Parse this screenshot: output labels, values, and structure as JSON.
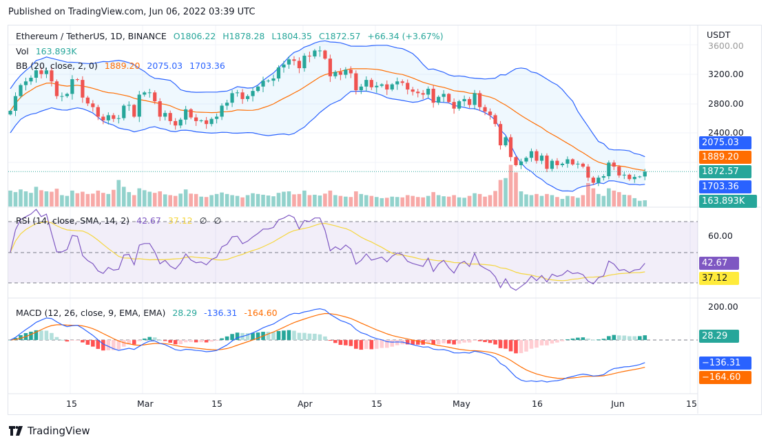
{
  "header": "Published on TradingView.com, Jun 06, 2022 03:39 UTC",
  "legend": {
    "symbol": "Ethereum / TetherUS, 1D, BINANCE",
    "o": "O1806.22",
    "h": "H1878.28",
    "l": "L1804.35",
    "c": "C1872.57",
    "chg": "+66.34 (+3.67%)",
    "vol_label": "Vol",
    "vol": "163.893K",
    "bb_label": "BB (20, close, 2, 0)",
    "bb_basis": "1889.20",
    "bb_upper": "2075.03",
    "bb_lower": "1703.36",
    "rsi_label": "RSI (14, close, SMA, 14, 2)",
    "rsi": "42.67",
    "rsi_ma": "37.12",
    "rsi_x1": "∅",
    "rsi_x2": "∅",
    "macd_label": "MACD (12, 26, close, 9, EMA, EMA)",
    "macd_hist": "28.29",
    "macd": "-136.31",
    "macd_signal": "-164.60"
  },
  "axis": {
    "currency": "USDT",
    "price_ticks": [
      "3600.00",
      "3200.00",
      "2800.00",
      "2400.00"
    ],
    "rsi_ticks": [
      "60.00"
    ],
    "macd_ticks": [
      "200.00"
    ],
    "x_ticks": [
      "15",
      "Mar",
      "15",
      "Apr",
      "15",
      "May",
      "16",
      "Jun",
      "15"
    ]
  },
  "tags": {
    "bb_upper": "2075.03",
    "bb_basis": "1889.20",
    "last": "1872.57",
    "bb_lower": "1703.36",
    "vol": "163.893K",
    "rsi": "42.67",
    "rsi_ma": "37.12",
    "macd_hist": "28.29",
    "macd": "−136.31",
    "macd_signal": "−164.60"
  },
  "colors": {
    "up": "#26a69a",
    "down": "#ef5350",
    "bb_band": "#2962ff",
    "bb_basis": "#ff6d00",
    "rsi": "#7e57c2",
    "rsi_ma": "#ffeb3b",
    "macd": "#2962ff",
    "signal": "#ff6d00"
  },
  "footer": "TradingView",
  "chart_data": {
    "type": "candlestick",
    "title": "Ethereum / TetherUS, 1D, BINANCE",
    "start_date": "2022-02-03",
    "end_date": "2022-06-06",
    "x_tick_dates": [
      "2022-02-15",
      "2022-03-01",
      "2022-03-15",
      "2022-04-01",
      "2022-04-15",
      "2022-05-01",
      "2022-05-16",
      "2022-06-01",
      "2022-06-15"
    ],
    "ylim": [
      1600,
      3700
    ],
    "close": [
      2700,
      2900,
      3050,
      3100,
      3150,
      3250,
      3200,
      3250,
      3100,
      2900,
      2900,
      2930,
      3130,
      3120,
      2880,
      2800,
      2750,
      2620,
      2570,
      2640,
      2590,
      2600,
      2770,
      2780,
      2620,
      2920,
      2950,
      2950,
      2830,
      2620,
      2670,
      2560,
      2500,
      2580,
      2720,
      2610,
      2560,
      2570,
      2520,
      2590,
      2620,
      2770,
      2810,
      2940,
      2950,
      2860,
      2900,
      2970,
      3030,
      3110,
      3110,
      3140,
      3290,
      3330,
      3400,
      3380,
      3280,
      3450,
      3440,
      3520,
      3520,
      3410,
      3170,
      3230,
      3190,
      3260,
      3210,
      2980,
      3030,
      3120,
      3020,
      3040,
      3060,
      2990,
      3060,
      3100,
      3080,
      2990,
      2960,
      2940,
      2920,
      3000,
      2810,
      2890,
      2930,
      2820,
      2730,
      2830,
      2860,
      2780,
      2940,
      2750,
      2690,
      2640,
      2520,
      2230,
      2340,
      2070,
      1960,
      2010,
      2060,
      2150,
      2020,
      2090,
      1910,
      2020,
      1960,
      1980,
      2040,
      1970,
      1980,
      1940,
      1790,
      1720,
      1790,
      1810,
      1995,
      1940,
      1820,
      1830,
      1770,
      1800,
      1806.22,
      1872.57
    ],
    "volume_k": [
      420,
      380,
      450,
      400,
      360,
      520,
      430,
      400,
      390,
      470,
      300,
      280,
      420,
      350,
      390,
      330,
      340,
      420,
      360,
      330,
      440,
      700,
      520,
      380,
      300,
      480,
      430,
      390,
      360,
      400,
      320,
      300,
      280,
      340,
      450,
      340,
      330,
      260,
      250,
      300,
      330,
      370,
      330,
      300,
      280,
      240,
      300,
      350,
      330,
      310,
      290,
      270,
      360,
      390,
      400,
      320,
      330,
      420,
      300,
      310,
      290,
      340,
      420,
      300,
      280,
      260,
      250,
      400,
      330,
      300,
      280,
      250,
      220,
      230,
      260,
      250,
      240,
      300,
      280,
      250,
      240,
      280,
      380,
      300,
      270,
      260,
      300,
      240,
      230,
      280,
      350,
      330,
      260,
      300,
      410,
      700,
      750,
      1100,
      900,
      400,
      320,
      300,
      330,
      280,
      330,
      300,
      250,
      200,
      280,
      270,
      230,
      300,
      620,
      480,
      330,
      280,
      480,
      420,
      380,
      310,
      300,
      220,
      150,
      163.893
    ]
  }
}
